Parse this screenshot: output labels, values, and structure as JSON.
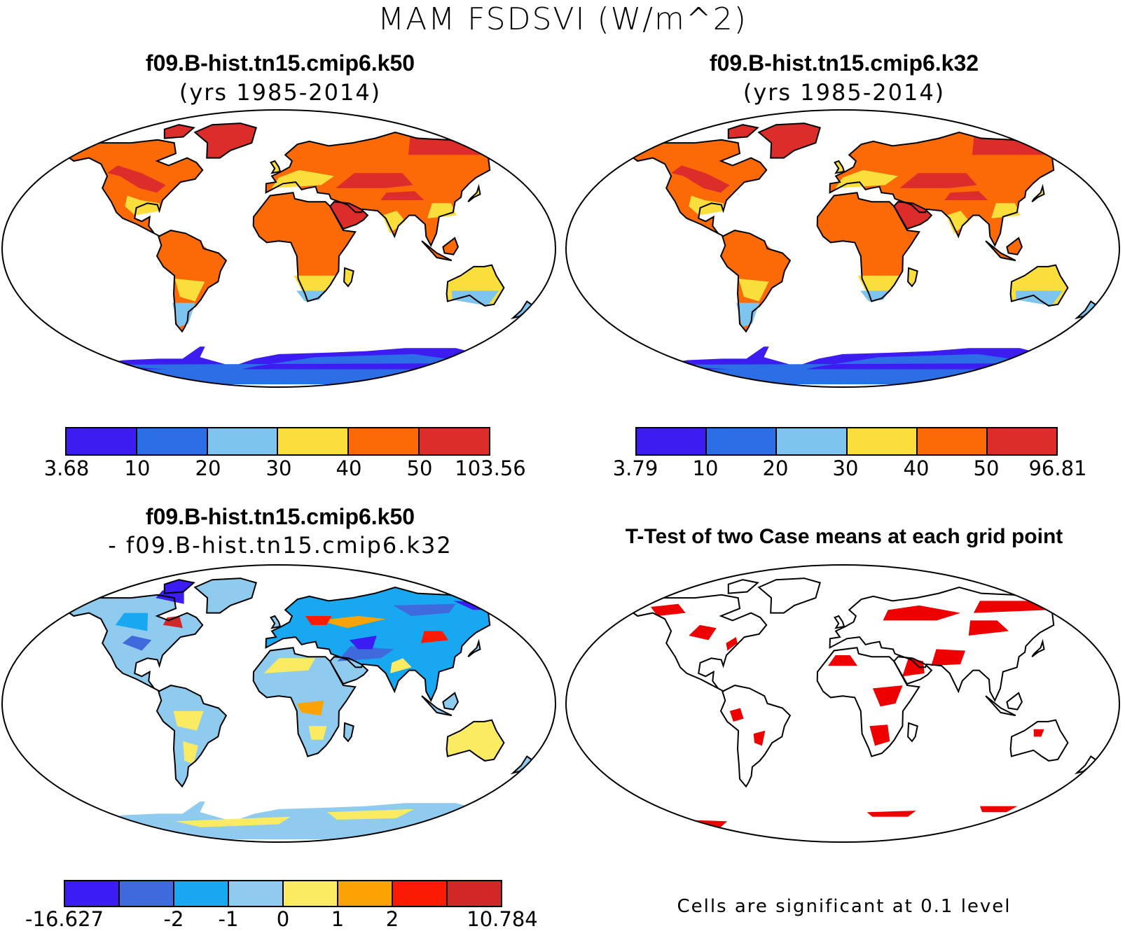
{
  "figure": {
    "title": "MAM FSDSVI (W/m^2)"
  },
  "panels": [
    {
      "title": "f09.B-hist.tn15.cmip6.k50",
      "subtitle": "(yrs 1985-2014)",
      "colorbar": {
        "colors": [
          "#3c1cf0",
          "#2c6ee6",
          "#7dc4ee",
          "#f9de3c",
          "#fb6a07",
          "#dc2d2a"
        ],
        "labels": [
          "3.68",
          "10",
          "20",
          "30",
          "40",
          "50",
          "103.56"
        ]
      }
    },
    {
      "title": "f09.B-hist.tn15.cmip6.k32",
      "subtitle": "(yrs 1985-2014)",
      "colorbar": {
        "colors": [
          "#3c1cf0",
          "#2c6ee6",
          "#7dc4ee",
          "#f9de3c",
          "#fb6a07",
          "#dc2d2a"
        ],
        "labels": [
          "3.79",
          "10",
          "20",
          "30",
          "40",
          "50",
          "96.81"
        ]
      }
    },
    {
      "title": "f09.B-hist.tn15.cmip6.k50",
      "subtitle": "- f09.B-hist.tn15.cmip6.k32",
      "colorbar": {
        "colors": [
          "#3b1cf2",
          "#3e6ade",
          "#17a8f1",
          "#8ecbee",
          "#fbeb62",
          "#fba205",
          "#fb1b05",
          "#d12727"
        ],
        "labels": [
          "-16.627",
          "-2",
          "-1",
          "0",
          "1",
          "2",
          "10.784"
        ]
      }
    },
    {
      "title": "T-Test of two Case means at each grid point",
      "note": "Cells are significant at 0.1 level",
      "significant_color": "#ee0000"
    }
  ]
}
